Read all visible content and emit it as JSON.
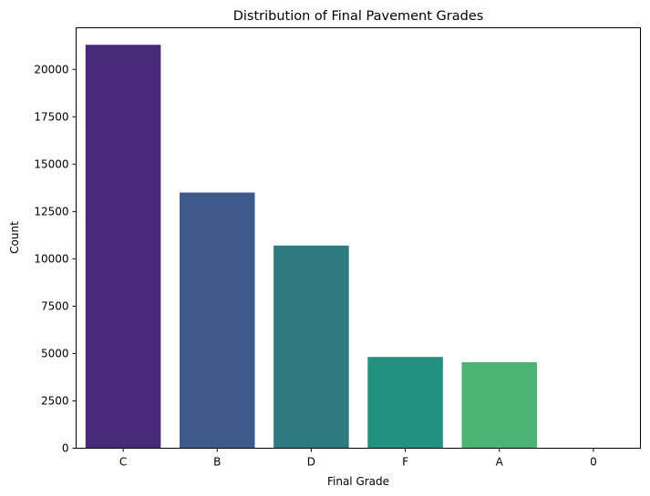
{
  "chart_data": {
    "type": "bar",
    "title": "Distribution of Final Pavement Grades",
    "xlabel": "Final Grade",
    "ylabel": "Count",
    "categories": [
      "C",
      "B",
      "D",
      "F",
      "A",
      "0"
    ],
    "values": [
      21300,
      13500,
      10700,
      4820,
      4540,
      2
    ],
    "colors": [
      "#482878",
      "#3e5a8a",
      "#2d7a80",
      "#229180",
      "#4bb474",
      "#fde725"
    ],
    "ylim": [
      0,
      22200
    ],
    "yticks": [
      0,
      2500,
      5000,
      7500,
      10000,
      12500,
      15000,
      17500,
      20000
    ],
    "grid": false,
    "legend": "none"
  }
}
